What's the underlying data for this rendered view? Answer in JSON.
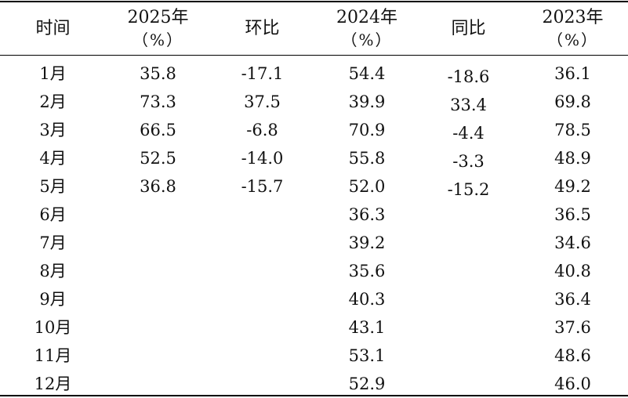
{
  "headers": {
    "month": "时间",
    "y2025": "2025年",
    "y2025_unit": "（%）",
    "mom": "环比",
    "y2024": "2024年",
    "y2024_unit": "（%）",
    "yoy": "同比",
    "y2023": "2023年",
    "y2023_unit": "（%）"
  },
  "rows": [
    {
      "month": "1月",
      "y2025": "35.8",
      "mom": "-17.1",
      "y2024": "54.4",
      "yoy": "-18.6",
      "y2023": "36.1"
    },
    {
      "month": "2月",
      "y2025": "73.3",
      "mom": "37.5",
      "y2024": "39.9",
      "yoy": "33.4",
      "y2023": "69.8"
    },
    {
      "month": "3月",
      "y2025": "66.5",
      "mom": "-6.8",
      "y2024": "70.9",
      "yoy": "-4.4",
      "y2023": "78.5"
    },
    {
      "month": "4月",
      "y2025": "52.5",
      "mom": "-14.0",
      "y2024": "55.8",
      "yoy": "-3.3",
      "y2023": "48.9"
    },
    {
      "month": "5月",
      "y2025": "36.8",
      "mom": "-15.7",
      "y2024": "52.0",
      "yoy": "-15.2",
      "y2023": "49.2"
    },
    {
      "month": "6月",
      "y2025": "",
      "mom": "",
      "y2024": "36.3",
      "yoy": "",
      "y2023": "36.5"
    },
    {
      "month": "7月",
      "y2025": "",
      "mom": "",
      "y2024": "39.2",
      "yoy": "",
      "y2023": "34.6"
    },
    {
      "month": "8月",
      "y2025": "",
      "mom": "",
      "y2024": "35.6",
      "yoy": "",
      "y2023": "40.8"
    },
    {
      "month": "9月",
      "y2025": "",
      "mom": "",
      "y2024": "40.3",
      "yoy": "",
      "y2023": "36.4"
    },
    {
      "month": "10月",
      "y2025": "",
      "mom": "",
      "y2024": "43.1",
      "yoy": "",
      "y2023": "37.6"
    },
    {
      "month": "11月",
      "y2025": "",
      "mom": "",
      "y2024": "53.1",
      "yoy": "",
      "y2023": "48.6"
    },
    {
      "month": "12月",
      "y2025": "",
      "mom": "",
      "y2024": "52.9",
      "yoy": "",
      "y2023": "46.0"
    }
  ]
}
